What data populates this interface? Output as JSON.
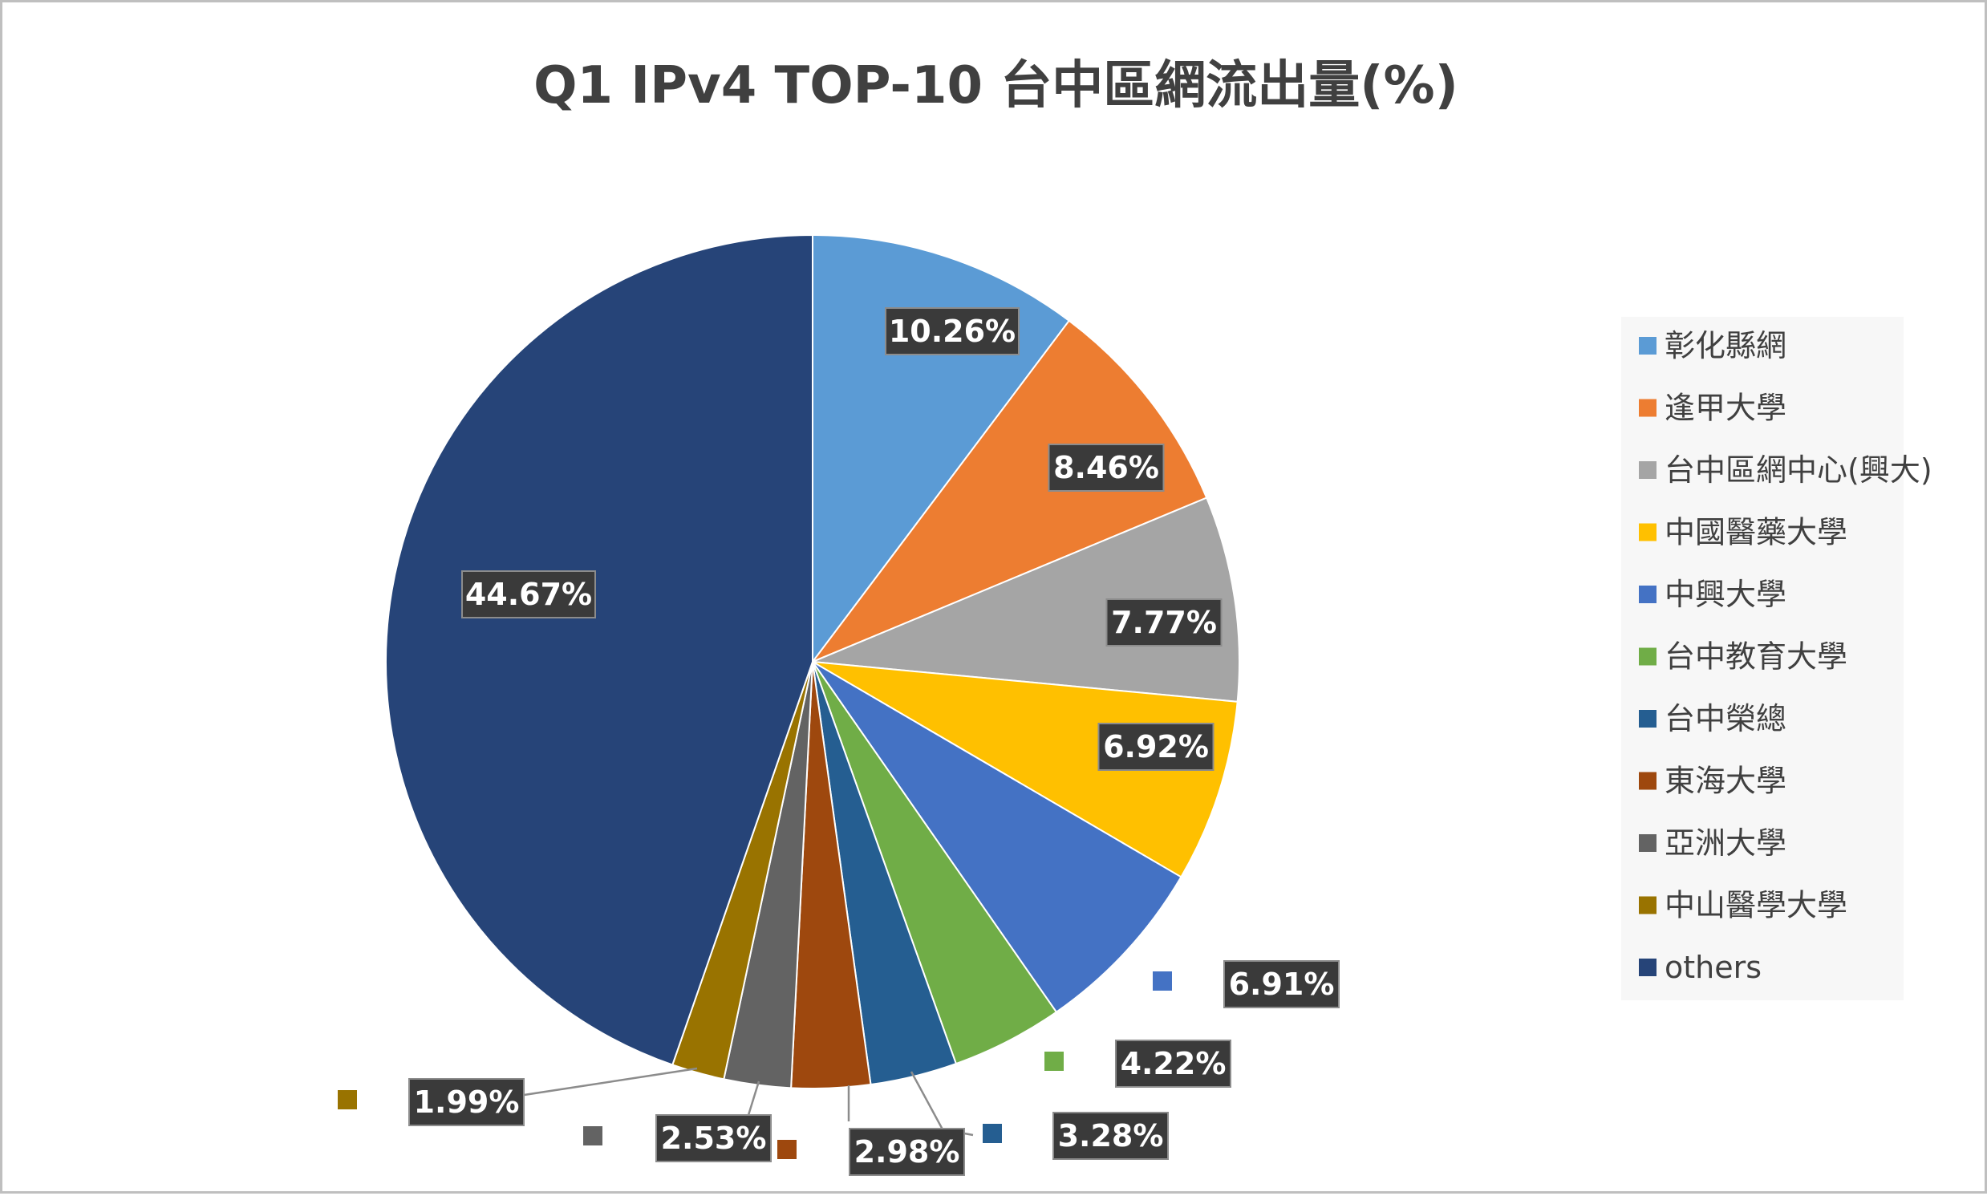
{
  "chart_data": {
    "type": "pie",
    "title": "Q1 IPv4 TOP-10 台中區網流出量(%)",
    "legend_position": "right",
    "slices": [
      {
        "label": "彰化縣網",
        "value": 10.26,
        "display": "10.26%",
        "color": "#5b9bd5"
      },
      {
        "label": "逢甲大學",
        "value": 8.46,
        "display": "8.46%",
        "color": "#ed7d31"
      },
      {
        "label": "台中區網中心(興大)",
        "value": 7.77,
        "display": "7.77%",
        "color": "#a5a5a5"
      },
      {
        "label": "中國醫藥大學",
        "value": 6.92,
        "display": "6.92%",
        "color": "#ffc000"
      },
      {
        "label": "中興大學",
        "value": 6.91,
        "display": "6.91%",
        "color": "#4472c4"
      },
      {
        "label": "台中教育大學",
        "value": 4.22,
        "display": "4.22%",
        "color": "#70ad47"
      },
      {
        "label": "台中榮總",
        "value": 3.28,
        "display": "3.28%",
        "color": "#255e91"
      },
      {
        "label": "東海大學",
        "value": 2.98,
        "display": "2.98%",
        "color": "#9e480e"
      },
      {
        "label": "亞洲大學",
        "value": 2.53,
        "display": "2.53%",
        "color": "#636363"
      },
      {
        "label": "中山醫學大學",
        "value": 1.99,
        "display": "1.99%",
        "color": "#997300"
      },
      {
        "label": "others",
        "value": 44.67,
        "display": "44.67%",
        "color": "#264478"
      }
    ]
  }
}
